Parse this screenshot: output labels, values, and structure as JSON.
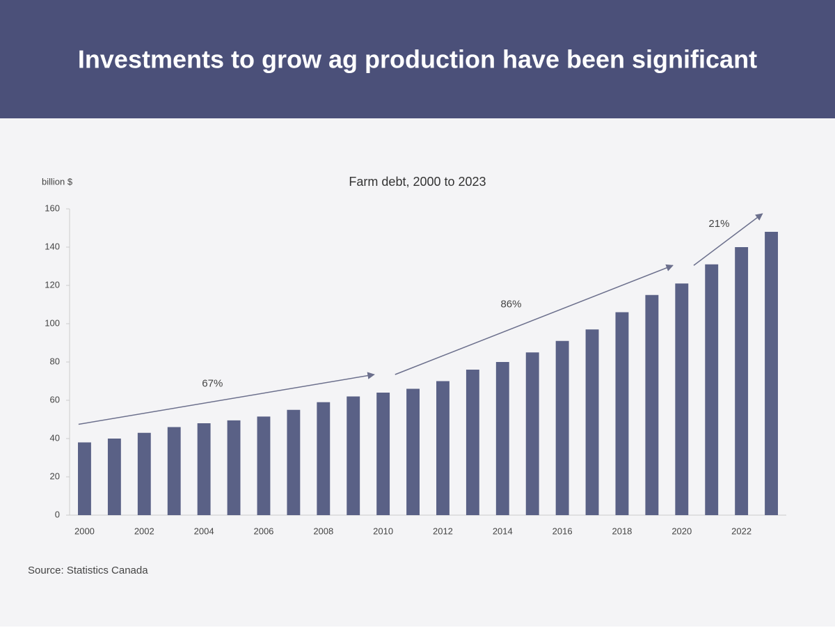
{
  "slide_title": "Investments to grow ag production have been significant",
  "source": "Source: Statistics Canada",
  "chart_data": {
    "type": "bar",
    "title": "Farm debt, 2000 to 2023",
    "y_label": "billion $",
    "categories": [
      "2000",
      null,
      "2002",
      null,
      "2004",
      null,
      "2006",
      null,
      "2008",
      null,
      "2010",
      null,
      "2012",
      null,
      "2014",
      null,
      "2016",
      null,
      "2018",
      null,
      "2020",
      null,
      "2022",
      null
    ],
    "values": [
      38,
      40,
      43,
      46,
      48,
      49.5,
      51.5,
      55,
      59,
      62,
      64,
      66,
      70,
      76,
      80,
      85,
      91,
      97,
      106,
      115,
      121,
      131,
      140,
      148
    ],
    "color": "#5a6186",
    "ylim": [
      0,
      160
    ],
    "yticks": [
      0,
      20,
      40,
      60,
      80,
      100,
      120,
      140,
      160
    ],
    "grid": false,
    "annotations": [
      "67%",
      "86%",
      "21%"
    ]
  }
}
